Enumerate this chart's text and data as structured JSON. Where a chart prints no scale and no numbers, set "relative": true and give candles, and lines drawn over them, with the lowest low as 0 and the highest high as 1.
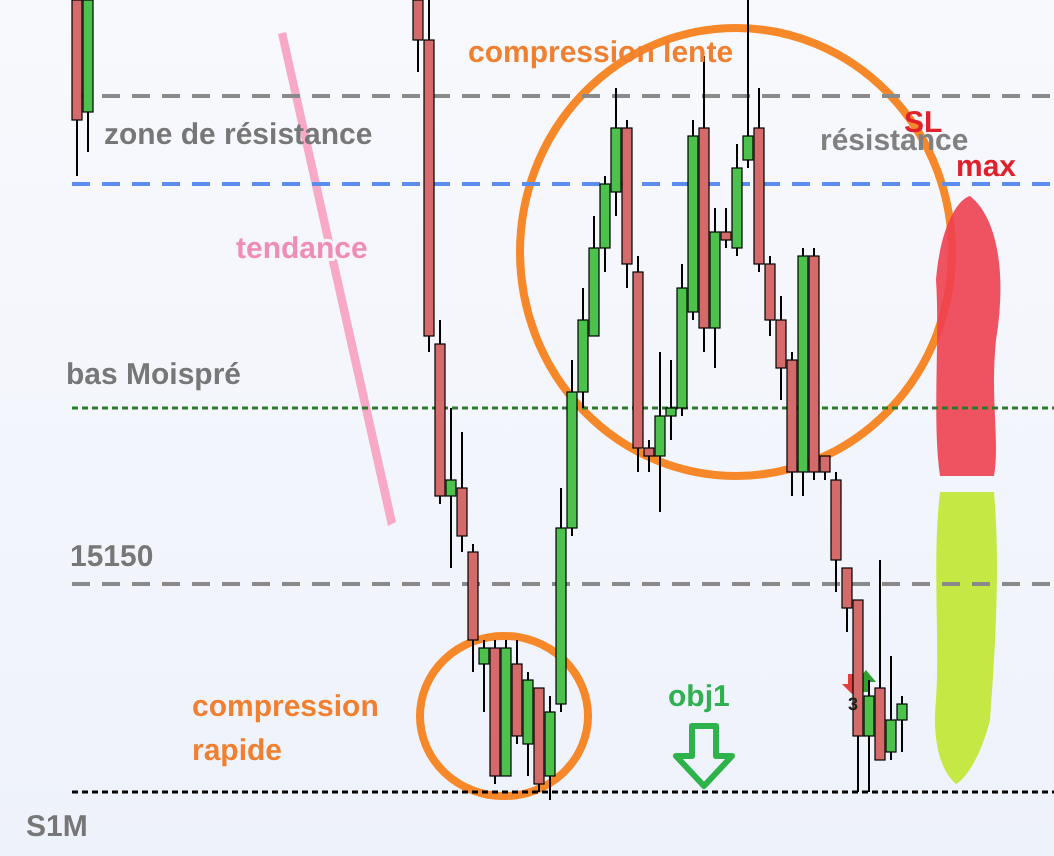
{
  "chart_data": {
    "type": "candlestick",
    "relative": true,
    "categories": [
      null,
      null,
      null,
      null,
      null,
      null,
      null,
      null,
      null,
      null,
      null,
      null,
      null,
      null,
      null,
      null,
      null,
      null,
      null,
      null,
      null,
      null,
      null,
      null,
      null,
      null,
      null,
      null,
      null,
      null,
      null,
      null,
      null,
      null,
      null,
      null,
      null,
      null,
      null,
      null,
      null,
      null,
      null,
      null,
      null,
      null,
      null,
      null,
      null,
      null,
      null,
      null,
      null,
      null,
      null,
      null,
      null,
      null,
      null,
      null,
      null,
      null,
      null,
      null,
      null,
      null,
      null,
      null,
      null,
      null,
      null,
      null,
      null,
      null,
      null,
      null,
      null,
      null,
      null,
      null,
      null,
      null,
      null,
      null,
      null,
      null,
      null,
      null
    ],
    "ohlc": [
      [
        1,
        1,
        0.78,
        0.85
      ],
      [
        0.86,
        1,
        0.81,
        1
      ],
      null,
      null,
      null,
      null,
      null,
      null,
      null,
      null,
      null,
      null,
      null,
      null,
      null,
      null,
      null,
      null,
      null,
      null,
      null,
      null,
      null,
      null,
      null,
      null,
      null,
      null,
      null,
      null,
      null,
      [
        1,
        1,
        0.91,
        0.95
      ],
      [
        0.95,
        1,
        0.56,
        0.58
      ],
      [
        0.57,
        0.6,
        0.37,
        0.38
      ],
      [
        0.38,
        0.49,
        0.29,
        0.4
      ],
      [
        0.39,
        0.46,
        0.31,
        0.33
      ],
      [
        0.31,
        0.32,
        0.16,
        0.2
      ],
      [
        0.17,
        0.2,
        0.11,
        0.19
      ],
      [
        0.19,
        0.2,
        0.02,
        0.03
      ],
      [
        0.03,
        0.2,
        0.03,
        0.19
      ],
      [
        0.17,
        0.2,
        0.07,
        0.08
      ],
      [
        0.07,
        0.16,
        0.03,
        0.15
      ],
      [
        0.14,
        0.14,
        0.01,
        0.02
      ],
      [
        0.03,
        0.13,
        0,
        0.11
      ],
      [
        0.12,
        0.39,
        0.11,
        0.34
      ],
      [
        0.34,
        0.55,
        0.33,
        0.51
      ],
      [
        0.51,
        0.64,
        0.49,
        0.6
      ],
      [
        0.58,
        0.73,
        0.58,
        0.69
      ],
      [
        0.69,
        0.78,
        0.66,
        0.77
      ],
      [
        0.76,
        0.89,
        0.73,
        0.84
      ],
      [
        0.84,
        0.85,
        0.64,
        0.67
      ],
      [
        0.66,
        0.68,
        0.41,
        0.44
      ],
      [
        0.44,
        0.45,
        0.41,
        0.43
      ],
      [
        0.43,
        0.56,
        0.36,
        0.48
      ],
      [
        0.48,
        0.55,
        0.45,
        0.49
      ],
      [
        0.49,
        0.67,
        0.48,
        0.64
      ],
      [
        0.61,
        0.85,
        0.6,
        0.83
      ],
      [
        0.84,
        0.93,
        0.56,
        0.59
      ],
      [
        0.59,
        0.74,
        0.54,
        0.71
      ],
      [
        0.71,
        0.74,
        0.69,
        0.7
      ],
      [
        0.69,
        0.82,
        0.68,
        0.79
      ],
      [
        0.8,
        1,
        0.79,
        0.83
      ],
      [
        0.84,
        0.89,
        0.66,
        0.67
      ],
      [
        0.67,
        0.68,
        0.58,
        0.6
      ],
      [
        0.6,
        0.63,
        0.5,
        0.54
      ],
      [
        0.55,
        0.56,
        0.38,
        0.41
      ],
      [
        0.41,
        0.69,
        0.38,
        0.68
      ],
      [
        0.68,
        0.69,
        0.4,
        0.41
      ],
      [
        0.43,
        0.43,
        0.4,
        0.41
      ],
      [
        0.4,
        0.41,
        0.26,
        0.3
      ],
      [
        0.29,
        0.29,
        0.21,
        0.24
      ],
      [
        0.25,
        0.25,
        0.01,
        0.08
      ],
      [
        0.08,
        0.15,
        0.01,
        0.13
      ],
      [
        0.14,
        0.3,
        0.05,
        0.05
      ],
      [
        0.06,
        0.18,
        0.05,
        0.1
      ],
      [
        0.1,
        0.13,
        0.06,
        0.12
      ],
      null,
      null,
      null,
      null,
      null,
      null,
      null,
      null,
      null,
      null,
      null,
      null
    ],
    "colors": [
      "#d46a6a",
      "#4cc24c",
      null,
      null,
      null,
      null,
      null,
      null,
      null,
      null,
      null,
      null,
      null,
      null,
      null,
      null,
      null,
      null,
      null,
      null,
      null,
      null,
      null,
      null,
      null,
      null,
      null,
      null,
      null,
      null,
      null,
      "#d46a6a",
      "#d46a6a",
      "#d46a6a",
      "#4cc24c",
      "#d46a6a",
      "#d46a6a",
      "#4cc24c",
      "#d46a6a",
      "#4cc24c",
      "#d46a6a",
      "#4cc24c",
      "#d46a6a",
      "#4cc24c",
      "#4cc24c",
      "#4cc24c",
      "#4cc24c",
      "#4cc24c",
      "#4cc24c",
      "#4cc24c",
      "#d46a6a",
      "#d46a6a",
      "#d46a6a",
      "#4cc24c",
      "#4cc24c",
      "#4cc24c",
      "#4cc24c",
      "#d46a6a",
      "#4cc24c",
      "#d46a6a",
      "#4cc24c",
      "#4cc24c",
      "#d46a6a",
      "#d46a6a",
      "#d46a6a",
      "#d46a6a",
      "#4cc24c",
      "#d46a6a",
      "#d46a6a",
      "#d46a6a",
      "#d46a6a",
      "#d46a6a",
      "#4cc24c",
      "#d46a6a",
      "#4cc24c",
      "#4cc24c",
      null,
      null,
      null,
      null,
      null,
      null,
      null,
      null,
      null,
      null,
      null,
      null
    ],
    "ref_lines": [
      {
        "axis": "y",
        "value": 0.88,
        "label": null,
        "color": "#8a8a8a",
        "line_style": "dashed"
      },
      {
        "axis": "y",
        "value": 0.77,
        "label": "zone de résistance",
        "color": "#5b8def",
        "line_style": "dashed"
      },
      {
        "axis": "y",
        "value": 0.49,
        "label": "bas Moispré",
        "color": "#2a7a2a",
        "line_style": "dotted"
      },
      {
        "axis": "y",
        "value": 0.27,
        "label": null,
        "color": "#8a8a8a",
        "line_style": "dashed"
      },
      {
        "axis": "y",
        "value": 0.01,
        "label": "S1M",
        "color": "#000000",
        "line_style": "dotted"
      }
    ],
    "annotations": [
      "compression lente",
      "résistance",
      "SL",
      "max",
      "tendance",
      "compression rapide",
      "obj1",
      "3",
      "15150"
    ]
  }
}
